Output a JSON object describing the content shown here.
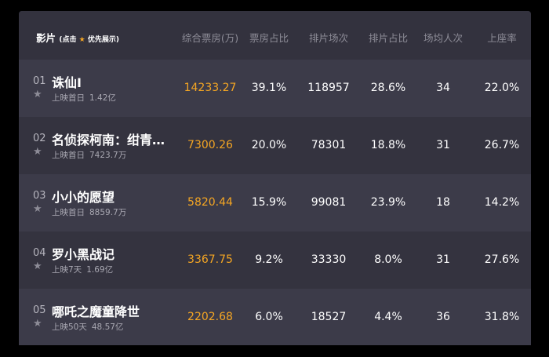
{
  "header": {
    "film": "影片",
    "hint_prefix": "(点击",
    "hint_suffix": "优先展示)",
    "columns": [
      "综合票房(万)",
      "票房占比",
      "排片场次",
      "排片占比",
      "场均人次",
      "上座率"
    ]
  },
  "accent_color": "#f5a623",
  "rows": [
    {
      "rank": "01",
      "name": "诛仙Ⅰ",
      "release": "上映首日",
      "total": "1.42亿",
      "box_office": "14233.27",
      "bo_share": "39.1%",
      "shows": "118957",
      "show_share": "28.6%",
      "avg_people": "34",
      "occupancy": "22.0%"
    },
    {
      "rank": "02",
      "name": "名侦探柯南：绀青…",
      "release": "上映首日",
      "total": "7423.7万",
      "box_office": "7300.26",
      "bo_share": "20.0%",
      "shows": "78301",
      "show_share": "18.8%",
      "avg_people": "31",
      "occupancy": "26.7%"
    },
    {
      "rank": "03",
      "name": "小小的愿望",
      "release": "上映首日",
      "total": "8859.7万",
      "box_office": "5820.44",
      "bo_share": "15.9%",
      "shows": "99081",
      "show_share": "23.9%",
      "avg_people": "18",
      "occupancy": "14.2%"
    },
    {
      "rank": "04",
      "name": "罗小黑战记",
      "release": "上映7天",
      "total": "1.69亿",
      "box_office": "3367.75",
      "bo_share": "9.2%",
      "shows": "33330",
      "show_share": "8.0%",
      "avg_people": "31",
      "occupancy": "27.6%"
    },
    {
      "rank": "05",
      "name": "哪吒之魔童降世",
      "release": "上映50天",
      "total": "48.57亿",
      "box_office": "2202.68",
      "bo_share": "6.0%",
      "shows": "18527",
      "show_share": "4.4%",
      "avg_people": "36",
      "occupancy": "31.8%"
    }
  ]
}
